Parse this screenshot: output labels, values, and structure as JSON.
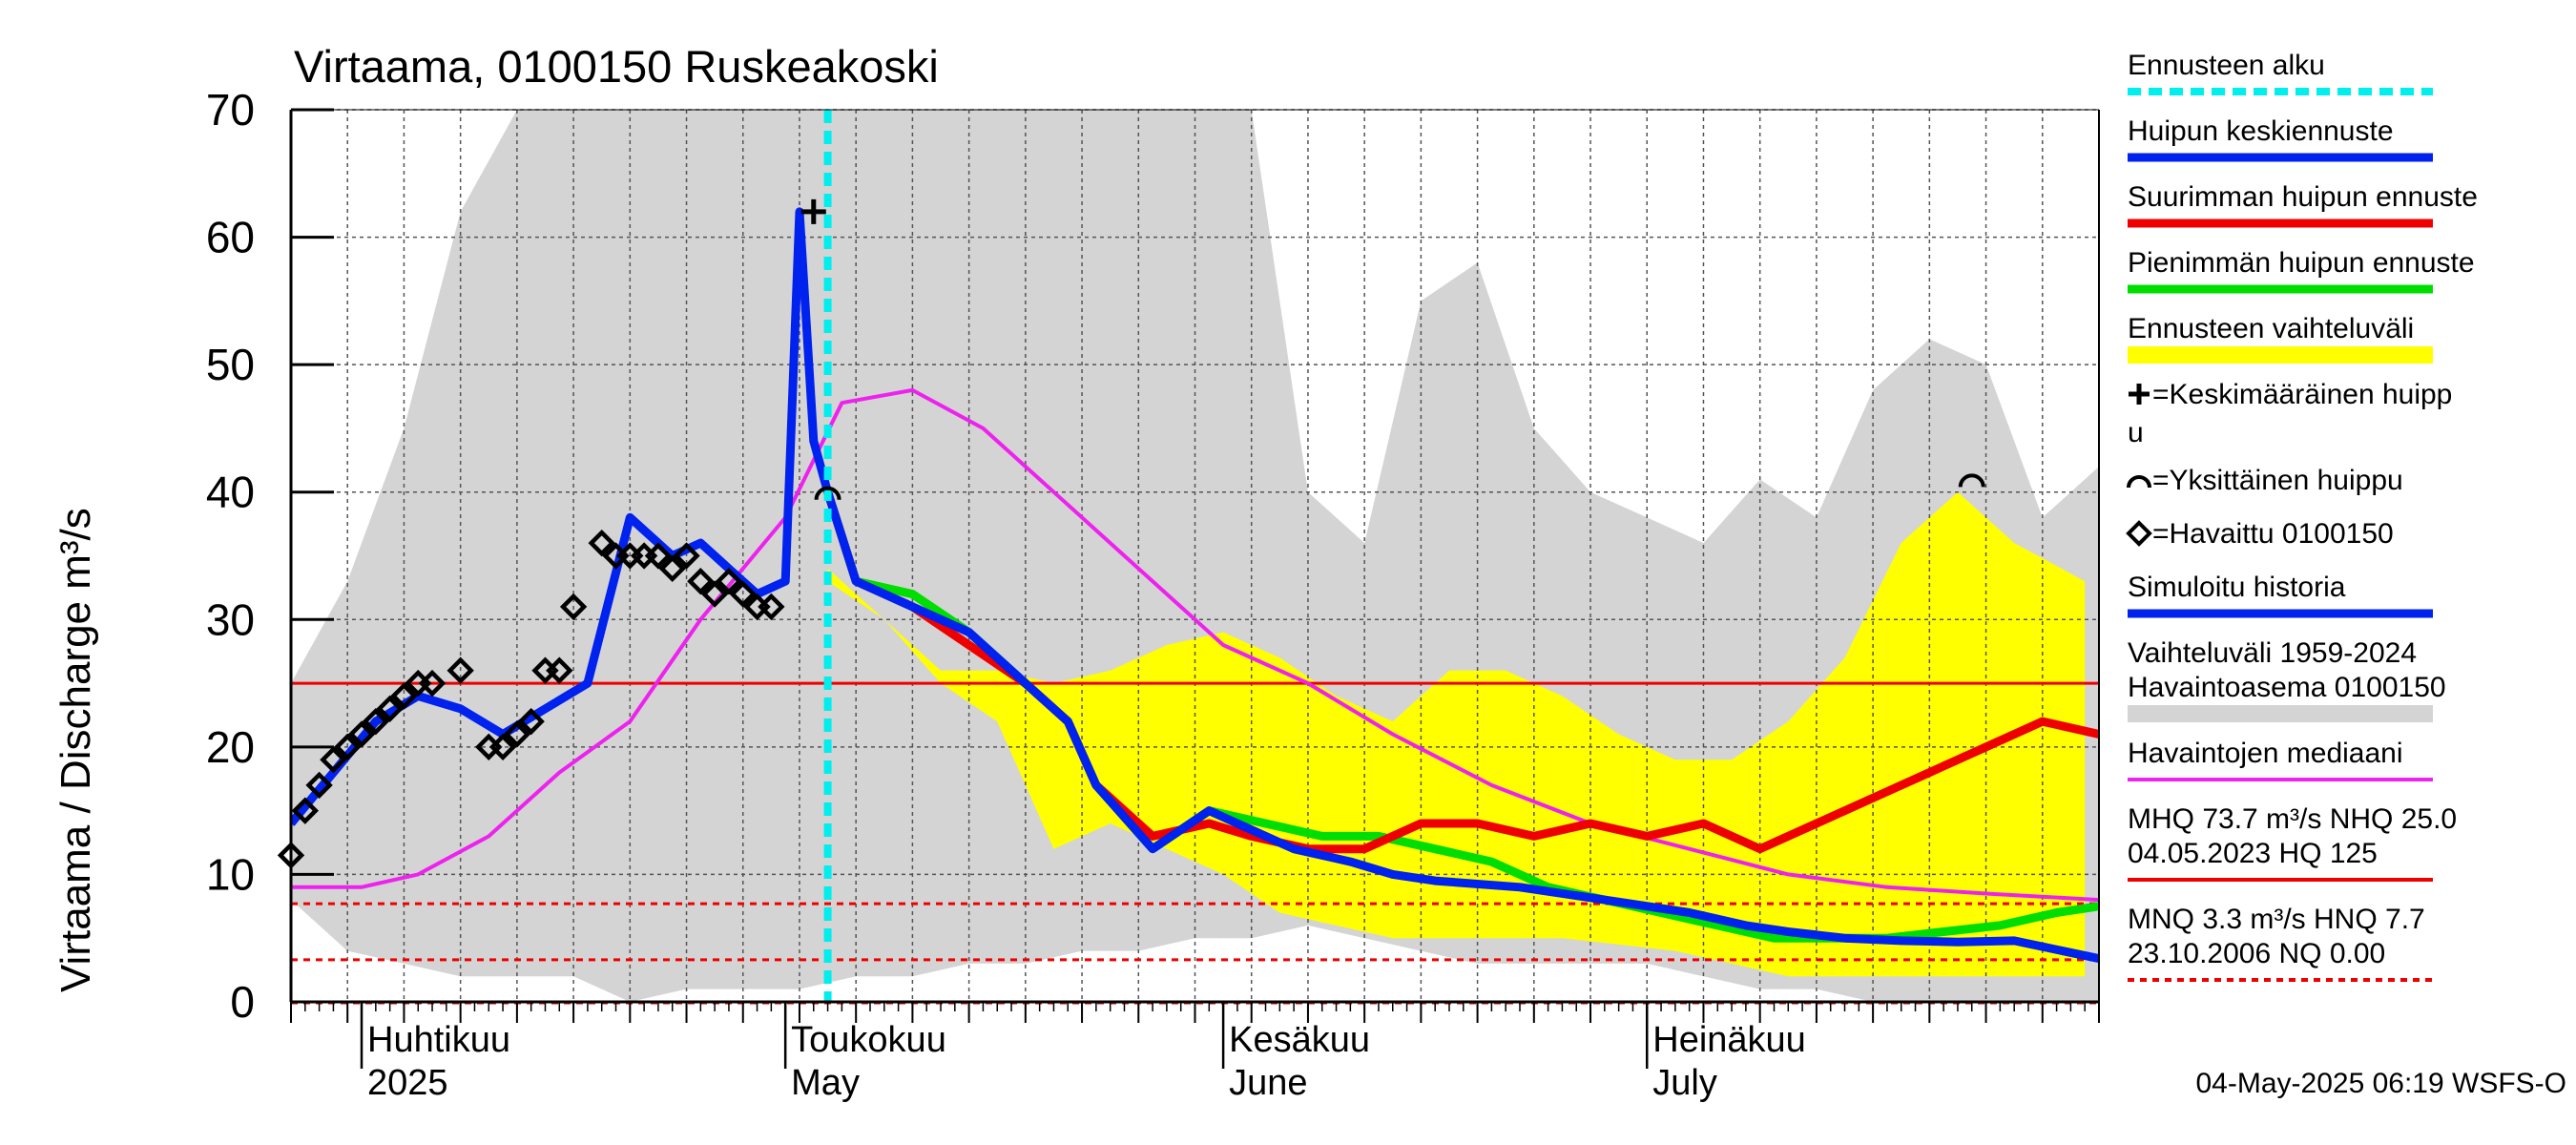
{
  "chart_data": {
    "type": "line",
    "title": "Virtaama, 0100150 Ruskeakoski",
    "ylabel": "Virtaama / Discharge   m³/s",
    "ylim": [
      0,
      70
    ],
    "yticks": [
      0,
      10,
      20,
      30,
      40,
      50,
      60,
      70
    ],
    "xlim": [
      "2025-03-27",
      "2025-08-02"
    ],
    "grid": true,
    "month_labels": [
      {
        "date": "2025-04-01",
        "fi": "Huhtikuu",
        "en": "2025"
      },
      {
        "date": "2025-05-01",
        "fi": "Toukokuu",
        "en": "May"
      },
      {
        "date": "2025-06-01",
        "fi": "Kesäkuu",
        "en": "June"
      },
      {
        "date": "2025-07-01",
        "fi": "Heinäkuu",
        "en": "July"
      }
    ],
    "forecast_start": "2025-05-04",
    "colors": {
      "history_band": "#d4d4d4",
      "forecast_band": "#ffff00",
      "mean_peak": "#0022ee",
      "max_peak": "#ee0000",
      "min_peak": "#00dd00",
      "median": "#ee22ee",
      "forecast_start": "#00eeee",
      "reference_lines": "#ee0000"
    },
    "reference_lines": [
      {
        "name": "NHQ",
        "value": 25.0,
        "style": "solid"
      },
      {
        "name": "HNQ",
        "value": 7.7,
        "style": "dashed"
      },
      {
        "name": "MNQ",
        "value": 3.3,
        "style": "dashed"
      }
    ],
    "series": [
      {
        "name": "Vaihteluväli 1959-2024 Havaintoasema 0100150",
        "kind": "band",
        "x": [
          "2025-03-27",
          "2025-03-31",
          "2025-04-04",
          "2025-04-08",
          "2025-04-12",
          "2025-04-16",
          "2025-04-20",
          "2025-04-24",
          "2025-04-28",
          "2025-05-02",
          "2025-05-06",
          "2025-05-10",
          "2025-05-14",
          "2025-05-18",
          "2025-05-22",
          "2025-05-26",
          "2025-05-30",
          "2025-06-03",
          "2025-06-07",
          "2025-06-11",
          "2025-06-15",
          "2025-06-19",
          "2025-06-23",
          "2025-06-27",
          "2025-07-01",
          "2025-07-05",
          "2025-07-09",
          "2025-07-13",
          "2025-07-17",
          "2025-07-21",
          "2025-07-25",
          "2025-07-29",
          "2025-08-02"
        ],
        "low": [
          8,
          4,
          3,
          2,
          2,
          2,
          0,
          1,
          1,
          1,
          2,
          2,
          3,
          3,
          4,
          4,
          5,
          5,
          6,
          5,
          4,
          3,
          3,
          3,
          3,
          2,
          1,
          1,
          0,
          0,
          0,
          0,
          0
        ],
        "high": [
          25,
          33,
          45,
          62,
          70,
          70,
          70,
          70,
          70,
          70,
          70,
          70,
          70,
          70,
          70,
          70,
          70,
          70,
          40,
          36,
          55,
          58,
          45,
          40,
          38,
          36,
          41,
          38,
          48,
          52,
          50,
          38,
          42
        ]
      },
      {
        "name": "Ennusteen vaihteluväli",
        "kind": "band",
        "x": [
          "2025-05-04",
          "2025-05-08",
          "2025-05-12",
          "2025-05-16",
          "2025-05-20",
          "2025-05-24",
          "2025-05-28",
          "2025-06-01",
          "2025-06-05",
          "2025-06-09",
          "2025-06-13",
          "2025-06-17",
          "2025-06-21",
          "2025-06-25",
          "2025-06-29",
          "2025-07-03",
          "2025-07-07",
          "2025-07-11",
          "2025-07-15",
          "2025-07-19",
          "2025-07-23",
          "2025-07-27",
          "2025-08-01"
        ],
        "low": [
          33,
          30,
          25,
          22,
          12,
          14,
          12,
          10,
          7,
          6,
          5,
          5,
          5,
          5,
          4.5,
          4,
          3,
          2,
          2,
          2,
          2,
          2,
          2
        ],
        "high": [
          34,
          30,
          26,
          26,
          25,
          26,
          28,
          29,
          27,
          24,
          22,
          26,
          26,
          24,
          21,
          19,
          19,
          22,
          27,
          36,
          40,
          36,
          33
        ]
      },
      {
        "name": "Huipun keskiennuste",
        "x": [
          "2025-05-04",
          "2025-05-06",
          "2025-05-10",
          "2025-05-14",
          "2025-05-18",
          "2025-05-21",
          "2025-05-23",
          "2025-05-27",
          "2025-05-31",
          "2025-06-02",
          "2025-06-06",
          "2025-06-10",
          "2025-06-13",
          "2025-06-16",
          "2025-06-22",
          "2025-06-28",
          "2025-07-04",
          "2025-07-08",
          "2025-07-11",
          "2025-07-15",
          "2025-07-19",
          "2025-07-23",
          "2025-07-27",
          "2025-08-02"
        ],
        "y": [
          40,
          33,
          31,
          29,
          25,
          22,
          17,
          12,
          15,
          14,
          12,
          11,
          10,
          9.5,
          9,
          8,
          7,
          6,
          5.5,
          5,
          4.8,
          4.7,
          4.8,
          3.4
        ]
      },
      {
        "name": "Suurimman huipun ennuste",
        "x": [
          "2025-05-04",
          "2025-05-06",
          "2025-05-10",
          "2025-05-14",
          "2025-05-18",
          "2025-05-21",
          "2025-05-23",
          "2025-05-27",
          "2025-05-31",
          "2025-06-03",
          "2025-06-07",
          "2025-06-11",
          "2025-06-15",
          "2025-06-19",
          "2025-06-23",
          "2025-06-27",
          "2025-07-01",
          "2025-07-05",
          "2025-07-09",
          "2025-07-13",
          "2025-07-17",
          "2025-07-21",
          "2025-07-25",
          "2025-07-29",
          "2025-08-02"
        ],
        "y": [
          40,
          33,
          31,
          28,
          25,
          22,
          17,
          13,
          14,
          13,
          12,
          12,
          14,
          14,
          13,
          14,
          13,
          14,
          12,
          14,
          16,
          18,
          20,
          22,
          21
        ]
      },
      {
        "name": "Pienimmän huipun ennuste",
        "x": [
          "2025-05-04",
          "2025-05-06",
          "2025-05-10",
          "2025-05-14",
          "2025-05-18",
          "2025-05-21",
          "2025-05-23",
          "2025-05-27",
          "2025-05-31",
          "2025-06-04",
          "2025-06-08",
          "2025-06-12",
          "2025-06-16",
          "2025-06-20",
          "2025-06-24",
          "2025-06-28",
          "2025-07-02",
          "2025-07-06",
          "2025-07-10",
          "2025-07-14",
          "2025-07-18",
          "2025-07-22",
          "2025-07-26",
          "2025-07-30",
          "2025-08-02"
        ],
        "y": [
          40,
          33,
          32,
          29,
          25,
          22,
          17,
          12,
          15,
          14,
          13,
          13,
          12,
          11,
          9,
          8,
          7,
          6,
          5,
          5,
          5,
          5.5,
          6,
          7,
          7.5
        ]
      },
      {
        "name": "Simuloitu historia",
        "x": [
          "2025-03-27",
          "2025-03-30",
          "2025-04-02",
          "2025-04-05",
          "2025-04-08",
          "2025-04-11",
          "2025-04-14",
          "2025-04-17",
          "2025-04-20",
          "2025-04-23",
          "2025-04-25",
          "2025-04-27",
          "2025-04-29",
          "2025-05-01",
          "2025-05-02",
          "2025-05-03",
          "2025-05-04"
        ],
        "y": [
          14,
          18,
          22,
          24,
          23,
          21,
          23,
          25,
          38,
          35,
          36,
          34,
          32,
          33,
          62,
          44,
          40
        ]
      },
      {
        "name": "Havaintojen mediaani",
        "x": [
          "2025-03-27",
          "2025-04-01",
          "2025-04-05",
          "2025-04-10",
          "2025-04-15",
          "2025-04-20",
          "2025-04-25",
          "2025-05-01",
          "2025-05-05",
          "2025-05-10",
          "2025-05-15",
          "2025-05-20",
          "2025-05-25",
          "2025-06-01",
          "2025-06-07",
          "2025-06-13",
          "2025-06-20",
          "2025-06-27",
          "2025-07-04",
          "2025-07-11",
          "2025-07-18",
          "2025-07-25",
          "2025-08-02"
        ],
        "y": [
          9,
          9,
          10,
          13,
          18,
          22,
          30,
          38,
          47,
          48,
          45,
          40,
          35,
          28,
          25,
          21,
          17,
          14,
          12,
          10,
          9,
          8.5,
          8
        ]
      },
      {
        "name": "Havaittu 0100150",
        "kind": "points",
        "x": [
          "2025-03-27",
          "2025-03-28",
          "2025-03-29",
          "2025-03-30",
          "2025-03-31",
          "2025-04-01",
          "2025-04-02",
          "2025-04-03",
          "2025-04-04",
          "2025-04-05",
          "2025-04-06",
          "2025-04-08",
          "2025-04-10",
          "2025-04-11",
          "2025-04-12",
          "2025-04-13",
          "2025-04-14",
          "2025-04-15",
          "2025-04-16",
          "2025-04-18",
          "2025-04-19",
          "2025-04-20",
          "2025-04-21",
          "2025-04-22",
          "2025-04-23",
          "2025-04-24",
          "2025-04-25",
          "2025-04-26",
          "2025-04-27",
          "2025-04-28",
          "2025-04-29",
          "2025-04-30"
        ],
        "y": [
          11.5,
          15,
          17,
          19,
          20,
          21,
          22,
          23,
          24,
          25,
          25,
          26,
          20,
          20,
          21,
          22,
          26,
          26,
          31,
          36,
          35,
          35,
          35,
          35,
          34,
          35,
          33,
          32,
          33,
          32,
          31,
          31
        ]
      }
    ],
    "peaks": [
      {
        "name": "Keskimääräinen huippu",
        "x": "2025-05-03",
        "y": 62
      },
      {
        "name": "Yksittäinen huippu",
        "x": "2025-05-04",
        "y": 40
      },
      {
        "name": "Yksittäinen huippu",
        "x": "2025-07-24",
        "y": 41
      }
    ],
    "legend": {
      "placement": "right",
      "items": [
        {
          "label": "Ennusteen alku",
          "symbol": "dashed",
          "color": "#00eeee"
        },
        {
          "label": "Huipun keskiennuste",
          "symbol": "line",
          "color": "#0022ee"
        },
        {
          "label": "Suurimman huipun ennuste",
          "symbol": "line",
          "color": "#ee0000"
        },
        {
          "label": "Pienimmän huipun ennuste",
          "symbol": "line",
          "color": "#00dd00"
        },
        {
          "label": "Ennusteen vaihteluväli",
          "symbol": "band",
          "color": "#ffff00"
        },
        {
          "label": "=Keskimääräinen huipp",
          "label2": "u",
          "symbol": "plus",
          "color": "#000000"
        },
        {
          "label": "=Yksittäinen huippu",
          "symbol": "arc",
          "color": "#000000"
        },
        {
          "label": "=Havaittu 0100150",
          "symbol": "diamond",
          "color": "#000000"
        },
        {
          "label": "Simuloitu historia",
          "symbol": "line",
          "color": "#0022ee"
        },
        {
          "label": "Vaihteluväli 1959-2024",
          "label2": " Havaintoasema 0100150",
          "symbol": "band",
          "color": "#d4d4d4"
        },
        {
          "label": "Havaintojen mediaani",
          "symbol": "line",
          "color": "#ee22ee"
        },
        {
          "label": "MHQ 73.7 m³/s NHQ 25.0",
          "label2": "04.05.2023 HQ  125",
          "symbol": "line",
          "color": "#ee0000"
        },
        {
          "label": "MNQ  3.3 m³/s HNQ  7.7",
          "label2": "23.10.2006 NQ 0.00",
          "symbol": "dashed",
          "color": "#ee0000"
        }
      ]
    },
    "footer": "04-May-2025 06:19 WSFS-O"
  }
}
